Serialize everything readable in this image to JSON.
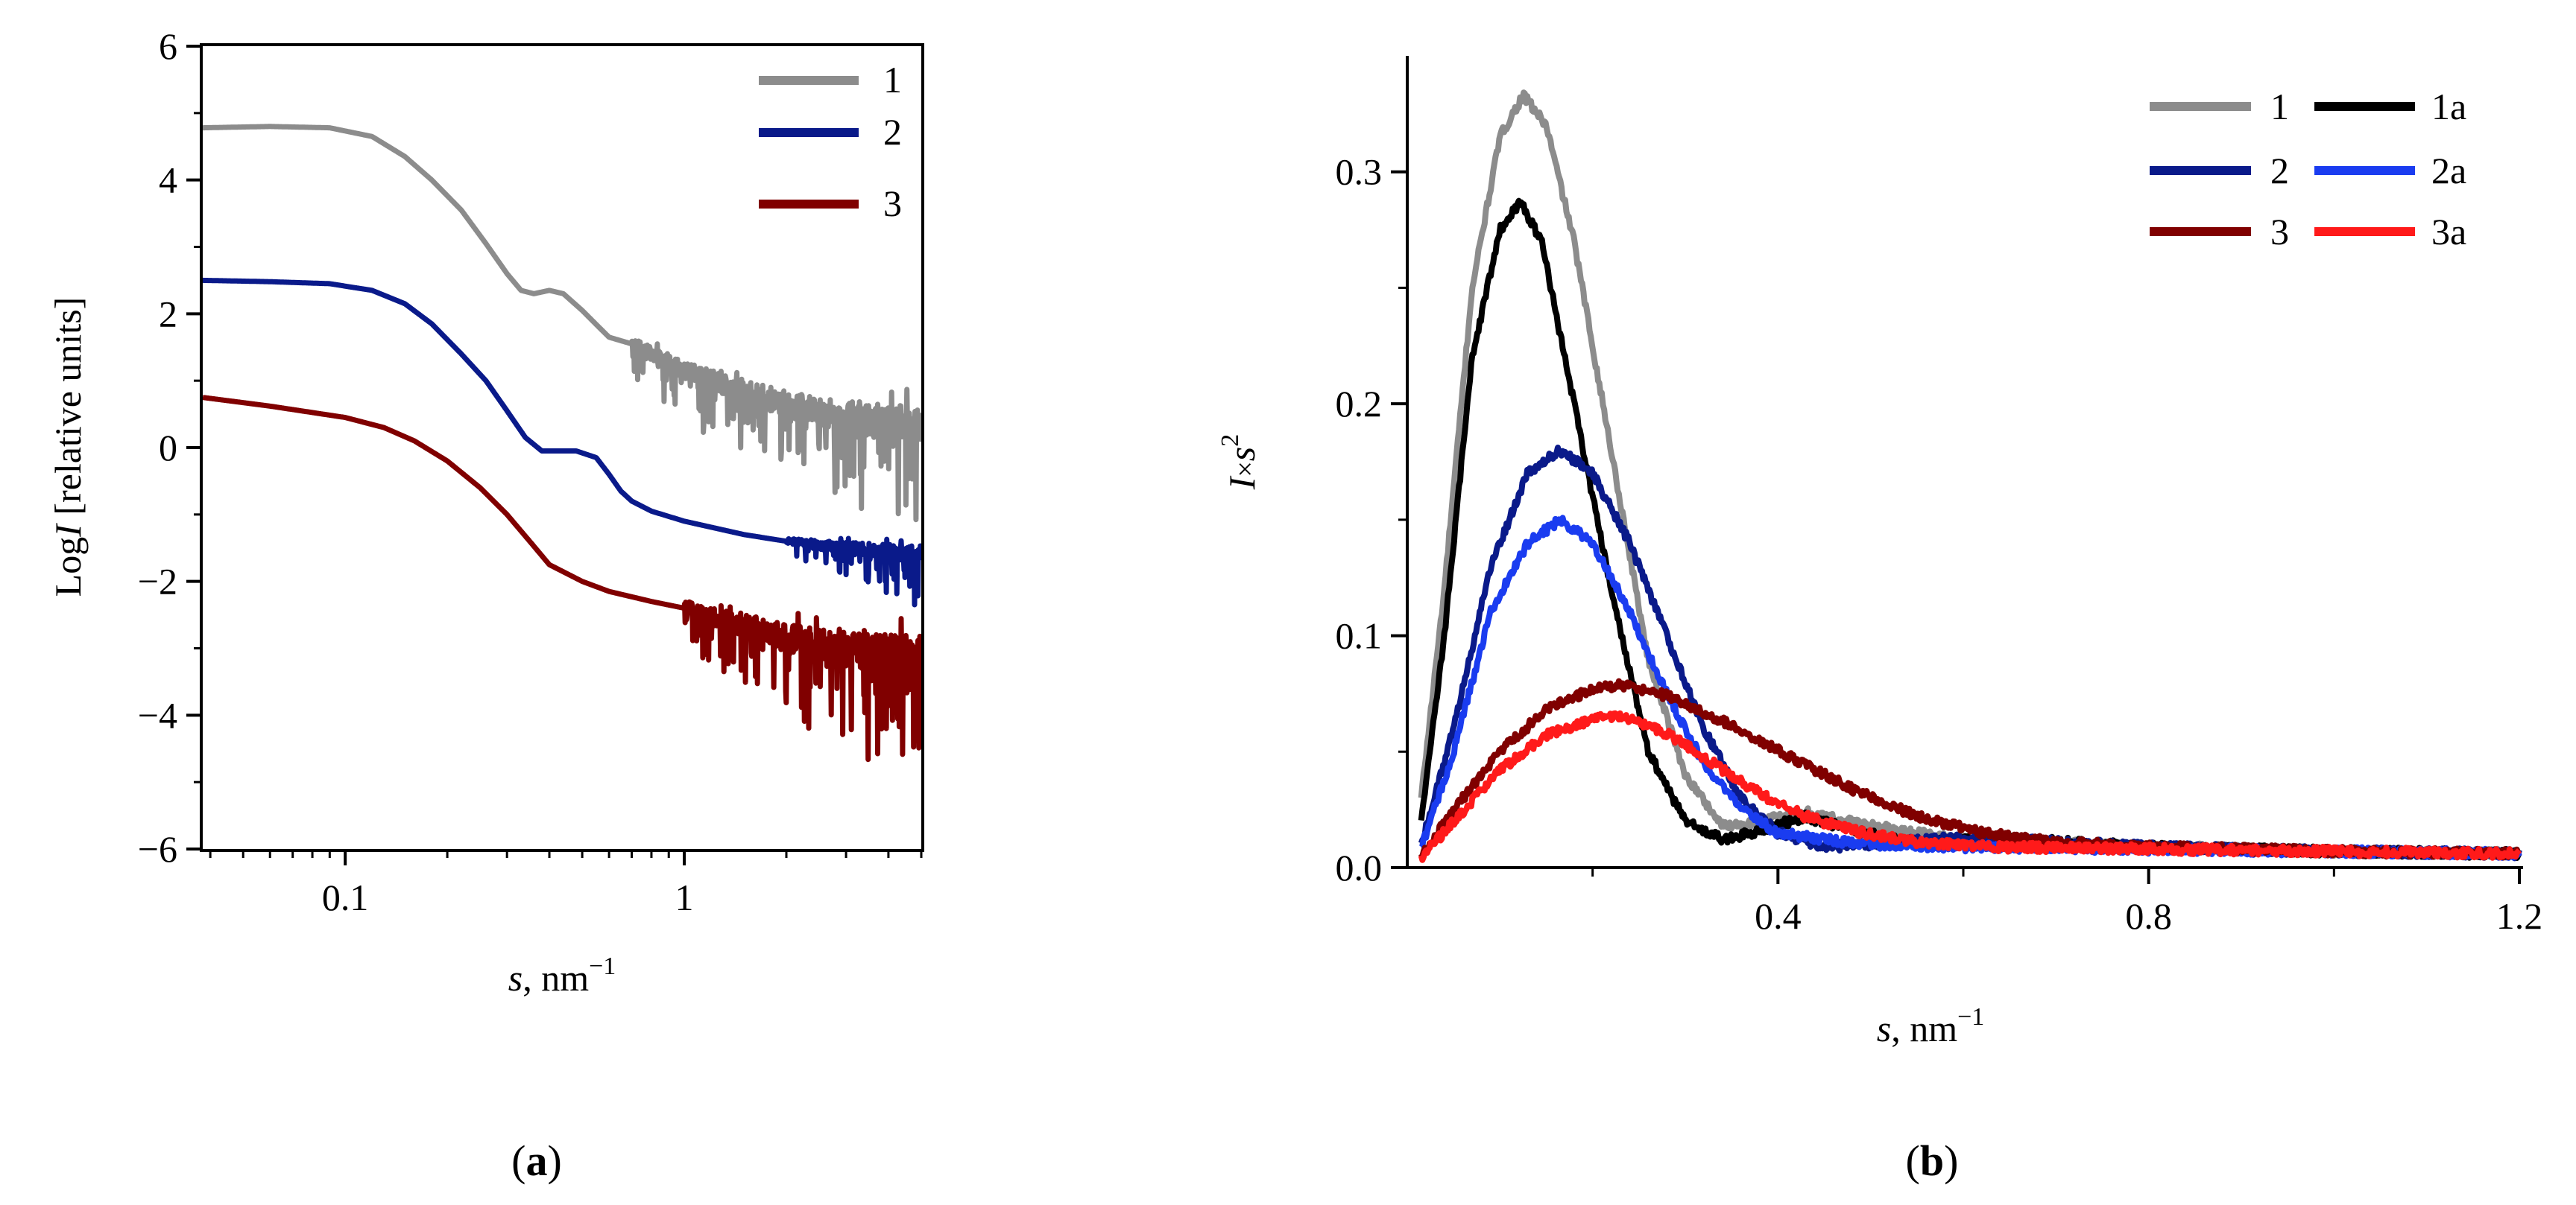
{
  "chart_data": [
    {
      "panel": "a",
      "panel_label": "a",
      "type": "line",
      "title": "",
      "xlabel_var": "s",
      "xlabel_unit": ", nm",
      "xlabel_sup": "−1",
      "ylabel_prefix": "Log",
      "ylabel_var": "I",
      "ylabel_suffix": " [relative units]",
      "x_scale": "log",
      "xlim": [
        0.038,
        5.0
      ],
      "ylim": [
        -6,
        6
      ],
      "x_ticks": [
        {
          "value": 0.1,
          "label": "0.1"
        },
        {
          "value": 1,
          "label": "1"
        }
      ],
      "y_ticks": [
        {
          "value": -6,
          "label": "−6"
        },
        {
          "value": -4,
          "label": "−4"
        },
        {
          "value": -2,
          "label": "−2"
        },
        {
          "value": 0,
          "label": "0"
        },
        {
          "value": 2,
          "label": "2"
        },
        {
          "value": 4,
          "label": "4"
        },
        {
          "value": 6,
          "label": "6"
        }
      ],
      "legend_position": "top-right",
      "series": [
        {
          "name": "1",
          "color": "#8c8c8c",
          "noise_from": 0.7,
          "noise_amp": 0.9,
          "points": [
            [
              0.038,
              4.78
            ],
            [
              0.06,
              4.8
            ],
            [
              0.09,
              4.78
            ],
            [
              0.12,
              4.65
            ],
            [
              0.15,
              4.35
            ],
            [
              0.18,
              4.0
            ],
            [
              0.22,
              3.55
            ],
            [
              0.26,
              3.05
            ],
            [
              0.3,
              2.6
            ],
            [
              0.33,
              2.35
            ],
            [
              0.36,
              2.3
            ],
            [
              0.4,
              2.35
            ],
            [
              0.44,
              2.3
            ],
            [
              0.5,
              2.05
            ],
            [
              0.56,
              1.8
            ],
            [
              0.6,
              1.65
            ],
            [
              0.7,
              1.55
            ],
            [
              0.8,
              1.4
            ],
            [
              1.0,
              1.15
            ],
            [
              1.5,
              0.85
            ],
            [
              2.0,
              0.65
            ],
            [
              3.0,
              0.45
            ],
            [
              5.0,
              0.35
            ]
          ]
        },
        {
          "name": "2",
          "color": "#0a1a8a",
          "noise_from": 2.0,
          "noise_amp": 0.45,
          "points": [
            [
              0.038,
              2.5
            ],
            [
              0.06,
              2.48
            ],
            [
              0.09,
              2.45
            ],
            [
              0.12,
              2.35
            ],
            [
              0.15,
              2.15
            ],
            [
              0.18,
              1.85
            ],
            [
              0.22,
              1.4
            ],
            [
              0.26,
              1.0
            ],
            [
              0.3,
              0.55
            ],
            [
              0.34,
              0.15
            ],
            [
              0.38,
              -0.05
            ],
            [
              0.42,
              -0.05
            ],
            [
              0.48,
              -0.05
            ],
            [
              0.55,
              -0.15
            ],
            [
              0.6,
              -0.4
            ],
            [
              0.65,
              -0.65
            ],
            [
              0.7,
              -0.8
            ],
            [
              0.8,
              -0.95
            ],
            [
              1.0,
              -1.1
            ],
            [
              1.5,
              -1.3
            ],
            [
              2.0,
              -1.4
            ],
            [
              3.0,
              -1.5
            ],
            [
              5.0,
              -1.6
            ]
          ]
        },
        {
          "name": "3",
          "color": "#800000",
          "noise_from": 1.0,
          "noise_amp": 1.1,
          "points": [
            [
              0.038,
              0.75
            ],
            [
              0.06,
              0.62
            ],
            [
              0.1,
              0.45
            ],
            [
              0.13,
              0.3
            ],
            [
              0.16,
              0.1
            ],
            [
              0.2,
              -0.2
            ],
            [
              0.25,
              -0.6
            ],
            [
              0.3,
              -1.0
            ],
            [
              0.35,
              -1.4
            ],
            [
              0.4,
              -1.75
            ],
            [
              0.5,
              -2.0
            ],
            [
              0.6,
              -2.15
            ],
            [
              0.8,
              -2.3
            ],
            [
              1.0,
              -2.4
            ],
            [
              1.5,
              -2.65
            ],
            [
              2.0,
              -2.85
            ],
            [
              3.0,
              -3.0
            ],
            [
              5.0,
              -3.15
            ]
          ]
        }
      ]
    },
    {
      "panel": "b",
      "panel_label": "b",
      "type": "line",
      "title": "",
      "xlabel_var": "s",
      "xlabel_unit": ", nm",
      "xlabel_sup": "−1",
      "ylabel_var_1": "I",
      "ylabel_times": "×",
      "ylabel_var_2": "s",
      "ylabel_sup": "2",
      "x_scale": "linear",
      "xlim": [
        0.0,
        1.2
      ],
      "ylim": [
        0.0,
        0.35
      ],
      "x_ticks": [
        {
          "value": 0.4,
          "label": "0.4"
        },
        {
          "value": 0.8,
          "label": "0.8"
        },
        {
          "value": 1.2,
          "label": "1.2"
        }
      ],
      "x_minor": [
        0.2,
        0.6,
        1.0
      ],
      "y_ticks": [
        {
          "value": 0.0,
          "label": "0.0"
        },
        {
          "value": 0.1,
          "label": "0.1"
        },
        {
          "value": 0.2,
          "label": "0.2"
        },
        {
          "value": 0.3,
          "label": "0.3"
        }
      ],
      "y_minor": [
        0.05,
        0.15,
        0.25
      ],
      "legend_position": "top-right",
      "series": [
        {
          "name": "1",
          "color": "#8c8c8c",
          "noise_amp": 0.002,
          "points": [
            [
              0.015,
              0.03
            ],
            [
              0.04,
              0.12
            ],
            [
              0.07,
              0.25
            ],
            [
              0.1,
              0.315
            ],
            [
              0.125,
              0.333
            ],
            [
              0.15,
              0.32
            ],
            [
              0.18,
              0.27
            ],
            [
              0.22,
              0.18
            ],
            [
              0.26,
              0.09
            ],
            [
              0.3,
              0.04
            ],
            [
              0.34,
              0.018
            ],
            [
              0.38,
              0.02
            ],
            [
              0.43,
              0.024
            ],
            [
              0.5,
              0.018
            ],
            [
              0.6,
              0.012
            ],
            [
              0.8,
              0.009
            ],
            [
              1.0,
              0.007
            ],
            [
              1.2,
              0.006
            ]
          ]
        },
        {
          "name": "1a",
          "color": "#000000",
          "noise_amp": 0.002,
          "points": [
            [
              0.015,
              0.02
            ],
            [
              0.04,
              0.1
            ],
            [
              0.07,
              0.22
            ],
            [
              0.1,
              0.275
            ],
            [
              0.122,
              0.287
            ],
            [
              0.145,
              0.27
            ],
            [
              0.18,
              0.2
            ],
            [
              0.22,
              0.12
            ],
            [
              0.26,
              0.05
            ],
            [
              0.3,
              0.02
            ],
            [
              0.34,
              0.012
            ],
            [
              0.38,
              0.016
            ],
            [
              0.43,
              0.022
            ],
            [
              0.48,
              0.016
            ],
            [
              0.55,
              0.01
            ],
            [
              0.62,
              0.013
            ],
            [
              0.8,
              0.009
            ],
            [
              1.0,
              0.007
            ],
            [
              1.2,
              0.006
            ]
          ]
        },
        {
          "name": "2",
          "color": "#0a1a8a",
          "noise_amp": 0.002,
          "points": [
            [
              0.015,
              0.01
            ],
            [
              0.05,
              0.06
            ],
            [
              0.09,
              0.13
            ],
            [
              0.13,
              0.17
            ],
            [
              0.165,
              0.18
            ],
            [
              0.2,
              0.17
            ],
            [
              0.24,
              0.14
            ],
            [
              0.28,
              0.1
            ],
            [
              0.32,
              0.06
            ],
            [
              0.36,
              0.03
            ],
            [
              0.4,
              0.015
            ],
            [
              0.45,
              0.009
            ],
            [
              0.5,
              0.01
            ],
            [
              0.6,
              0.013
            ],
            [
              0.7,
              0.011
            ],
            [
              0.8,
              0.009
            ],
            [
              1.0,
              0.007
            ],
            [
              1.2,
              0.006
            ]
          ]
        },
        {
          "name": "2a",
          "color": "#1a3cf0",
          "noise_amp": 0.002,
          "points": [
            [
              0.015,
              0.008
            ],
            [
              0.05,
              0.05
            ],
            [
              0.09,
              0.11
            ],
            [
              0.13,
              0.14
            ],
            [
              0.165,
              0.15
            ],
            [
              0.2,
              0.14
            ],
            [
              0.24,
              0.11
            ],
            [
              0.28,
              0.075
            ],
            [
              0.32,
              0.045
            ],
            [
              0.36,
              0.025
            ],
            [
              0.4,
              0.015
            ],
            [
              0.45,
              0.012
            ],
            [
              0.5,
              0.01
            ],
            [
              0.6,
              0.009
            ],
            [
              0.8,
              0.008
            ],
            [
              1.0,
              0.007
            ],
            [
              1.2,
              0.006
            ]
          ]
        },
        {
          "name": "3",
          "color": "#800000",
          "noise_amp": 0.002,
          "points": [
            [
              0.015,
              0.005
            ],
            [
              0.05,
              0.025
            ],
            [
              0.1,
              0.05
            ],
            [
              0.15,
              0.068
            ],
            [
              0.2,
              0.077
            ],
            [
              0.23,
              0.079
            ],
            [
              0.28,
              0.074
            ],
            [
              0.33,
              0.065
            ],
            [
              0.38,
              0.055
            ],
            [
              0.43,
              0.044
            ],
            [
              0.48,
              0.034
            ],
            [
              0.55,
              0.022
            ],
            [
              0.62,
              0.015
            ],
            [
              0.7,
              0.011
            ],
            [
              0.8,
              0.009
            ],
            [
              1.0,
              0.007
            ],
            [
              1.2,
              0.006
            ]
          ]
        },
        {
          "name": "3a",
          "color": "#ff1a1a",
          "noise_amp": 0.002,
          "points": [
            [
              0.015,
              0.004
            ],
            [
              0.05,
              0.02
            ],
            [
              0.1,
              0.042
            ],
            [
              0.15,
              0.057
            ],
            [
              0.2,
              0.064
            ],
            [
              0.23,
              0.065
            ],
            [
              0.28,
              0.058
            ],
            [
              0.33,
              0.045
            ],
            [
              0.38,
              0.032
            ],
            [
              0.43,
              0.022
            ],
            [
              0.48,
              0.016
            ],
            [
              0.55,
              0.011
            ],
            [
              0.62,
              0.009
            ],
            [
              0.8,
              0.008
            ],
            [
              1.0,
              0.007
            ],
            [
              1.2,
              0.006
            ]
          ]
        }
      ]
    }
  ]
}
